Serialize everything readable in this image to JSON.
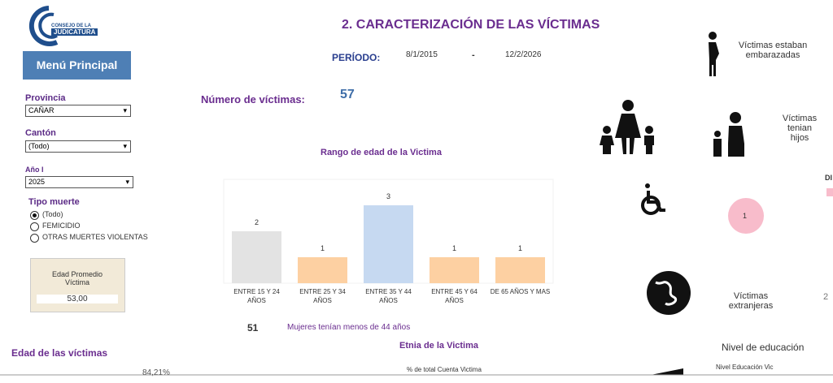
{
  "logo": {
    "line1": "CONSEJO DE LA",
    "line2": "JUDICATURA"
  },
  "sidebar": {
    "menu": "Menú Principal",
    "provincia": {
      "label": "Provincia",
      "value": "CAÑAR"
    },
    "canton": {
      "label": "Cantón",
      "value": "(Todo)"
    },
    "anio": {
      "label": "Año I",
      "value": "2025"
    },
    "tipo_muerte": {
      "label": "Tipo muerte",
      "options": [
        "(Todo)",
        "FEMICIDIO",
        "OTRAS MUERTES VIOLENTAS"
      ]
    },
    "edad_promedio": {
      "label": "Edad Promedio Víctima",
      "value": "53,00"
    }
  },
  "header": {
    "title": "2. CARACTERIZACIÓN DE LAS VÍCTIMAS",
    "periodo_label": "PERÍODO:",
    "from": "8/1/2015",
    "sep": "-",
    "to": "12/2/2026"
  },
  "numero": {
    "label": "Número de víctimas:",
    "value": "57"
  },
  "chart_data": {
    "type": "bar",
    "title": "Rango de edad de la Victima",
    "categories": [
      "ENTRE 15 Y 24 AÑOS",
      "ENTRE 25 Y 34 AÑOS",
      "ENTRE 35 Y 44 AÑOS",
      "ENTRE 45 Y 64 AÑOS",
      "DE 65 AÑOS Y MAS"
    ],
    "values": [
      2,
      1,
      3,
      1,
      1
    ],
    "colors": [
      "#e3e3e3",
      "#fdd0a2",
      "#c6d9f1",
      "#fdd0a2",
      "#fdd0a2"
    ],
    "ylim": [
      0,
      4
    ]
  },
  "menores": {
    "value": "51",
    "label": "Mujeres tenían menos de 44 años"
  },
  "etnia": {
    "title": "Etnia de la Victima",
    "axis": "% de total Cuenta Victima"
  },
  "edad": {
    "title": "Edad de las víctimas",
    "value": "84,21%"
  },
  "right": {
    "embarazadas": "Víctimas estaban embarazadas",
    "hijos": "Víctimas tenian hijos",
    "cut": "DI",
    "discapacidad": "1",
    "extranjeras": "Víctimas extranjeras",
    "extranjeras_value": "2",
    "educacion": "Nivel de educación",
    "educacion_axis": "Nivel Educación Vic"
  }
}
